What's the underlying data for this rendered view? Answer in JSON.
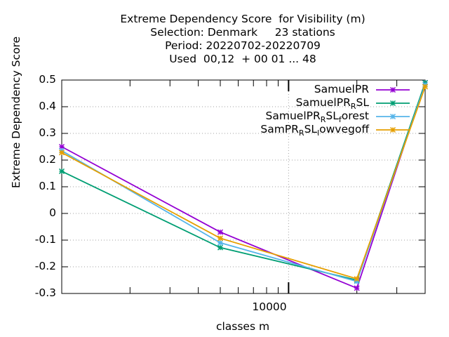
{
  "chart_data": {
    "type": "line",
    "title_lines": [
      "Extreme Dependency Score  for Visibility (m)",
      "Selection: Denmark     23 stations",
      "Period: 20220702-20220709",
      "Used  00,12  + 00 01 ... 48"
    ],
    "xlabel": "classes m",
    "ylabel": "Extreme Dependency Score",
    "x_scale": "log",
    "xlim": [
      1000,
      40000
    ],
    "ylim": [
      -0.3,
      0.5
    ],
    "yticks": [
      "0.5",
      "0.4",
      "0.3",
      "0.2",
      "0.1",
      "0",
      "-0.1",
      "-0.2",
      "-0.3"
    ],
    "ytick_values": [
      0.5,
      0.4,
      0.3,
      0.2,
      0.1,
      0,
      -0.1,
      -0.2,
      -0.3
    ],
    "xtick_label": "10000",
    "xtick_value": 10000,
    "grid": true,
    "legend_position": "top-right",
    "series": [
      {
        "name": "SamuelPR",
        "legend_main": "SamuelPR",
        "legend_parts": [
          [
            "SamuelPR",
            ""
          ]
        ],
        "color": "#9400d3",
        "x": [
          1000,
          5000,
          20000,
          40000
        ],
        "values": [
          0.25,
          -0.07,
          -0.28,
          0.49
        ]
      },
      {
        "name": "SamuelPR_RSL",
        "legend_parts": [
          [
            "SamuelPR",
            "R"
          ],
          [
            "SL",
            ""
          ]
        ],
        "color": "#009e73",
        "x": [
          1000,
          5000,
          20000,
          40000
        ],
        "values": [
          0.158,
          -0.128,
          -0.25,
          0.49
        ]
      },
      {
        "name": "SamuelPR_RSL_forest",
        "legend_parts": [
          [
            "SamuelPR",
            "R"
          ],
          [
            "SL",
            "f"
          ],
          [
            "orest",
            ""
          ]
        ],
        "color": "#56b4e9",
        "x": [
          1000,
          5000,
          20000,
          40000
        ],
        "values": [
          0.235,
          -0.11,
          -0.255,
          0.482
        ]
      },
      {
        "name": "SamPR_RSL_lowvegoff",
        "legend_parts": [
          [
            "SamPR",
            "R"
          ],
          [
            "SL",
            "l"
          ],
          [
            "owvegoff",
            ""
          ]
        ],
        "color": "#e69f00",
        "x": [
          1000,
          5000,
          20000,
          40000
        ],
        "values": [
          0.228,
          -0.093,
          -0.245,
          0.475
        ]
      }
    ]
  }
}
